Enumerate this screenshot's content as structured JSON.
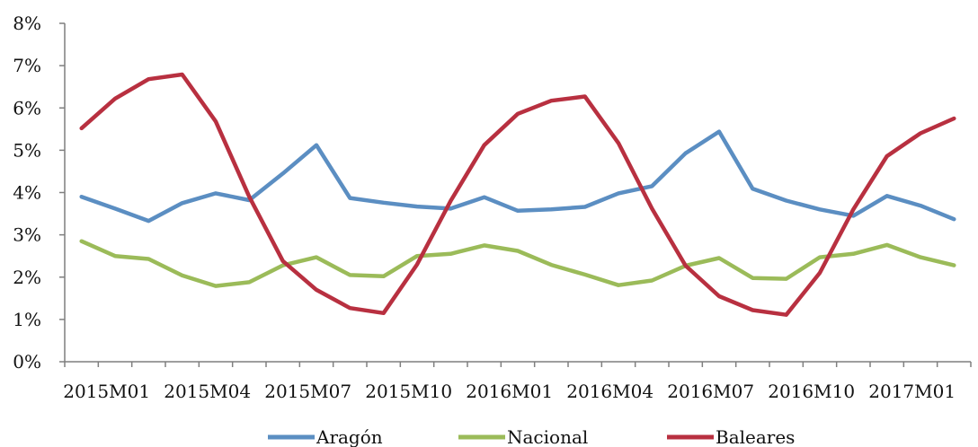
{
  "chart_data": {
    "type": "line",
    "title": "",
    "xlabel": "",
    "ylabel": "",
    "ylim": [
      0,
      8
    ],
    "yticks": [
      "0%",
      "1%",
      "2%",
      "3%",
      "4%",
      "5%",
      "6%",
      "7%",
      "8%"
    ],
    "grid": false,
    "legend_position": "bottom",
    "x": [
      "2015M01",
      "2015M02",
      "2015M03",
      "2015M04",
      "2015M05",
      "2015M06",
      "2015M07",
      "2015M08",
      "2015M09",
      "2015M10",
      "2015M11",
      "2015M12",
      "2016M01",
      "2016M02",
      "2016M03",
      "2016M04",
      "2016M05",
      "2016M06",
      "2016M07",
      "2016M08",
      "2016M09",
      "2016M10",
      "2016M11",
      "2016M12",
      "2017M01",
      "2017M02",
      "2017M03"
    ],
    "xtick_labels": [
      "2015M01",
      "2015M04",
      "2015M07",
      "2015M10",
      "2016M01",
      "2016M04",
      "2016M07",
      "2016M10",
      "2017M01"
    ],
    "series": [
      {
        "name": "Aragón",
        "color": "#5b8ec2",
        "values": [
          3.9,
          3.62,
          3.33,
          3.75,
          3.98,
          3.82,
          4.45,
          5.12,
          3.87,
          3.76,
          3.67,
          3.62,
          3.89,
          3.57,
          3.6,
          3.66,
          3.98,
          4.15,
          4.93,
          5.44,
          4.09,
          3.81,
          3.6,
          3.45,
          3.92,
          3.69,
          3.37
        ]
      },
      {
        "name": "Nacional",
        "color": "#9bbb59",
        "values": [
          2.85,
          2.5,
          2.43,
          2.04,
          1.79,
          1.88,
          2.28,
          2.47,
          2.05,
          2.02,
          2.5,
          2.55,
          2.75,
          2.62,
          2.29,
          2.06,
          1.81,
          1.92,
          2.27,
          2.45,
          1.98,
          1.96,
          2.47,
          2.55,
          2.76,
          2.47,
          2.28
        ]
      },
      {
        "name": "Baleares",
        "color": "#b83040",
        "values": [
          5.52,
          6.22,
          6.68,
          6.79,
          5.68,
          3.9,
          2.38,
          1.7,
          1.27,
          1.15,
          2.3,
          3.8,
          5.12,
          5.86,
          6.17,
          6.27,
          5.17,
          3.62,
          2.27,
          1.55,
          1.22,
          1.11,
          2.1,
          3.6,
          4.86,
          5.4,
          5.75
        ]
      }
    ]
  }
}
